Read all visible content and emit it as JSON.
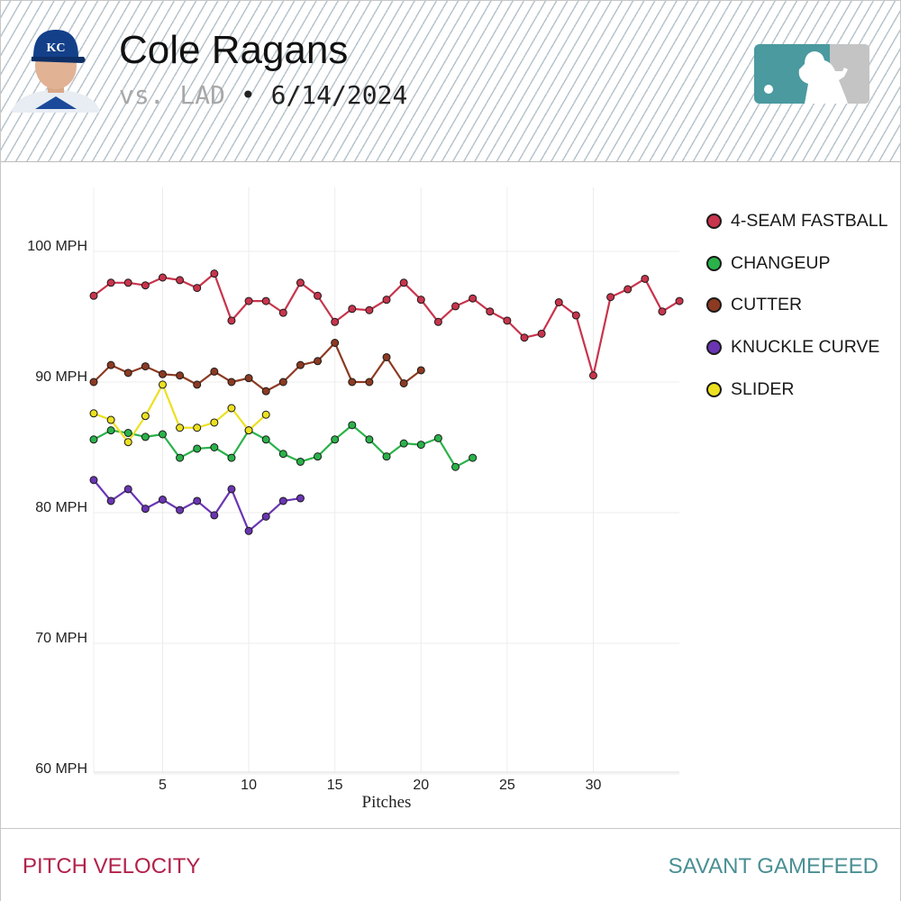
{
  "header": {
    "player_name": "Cole Ragans",
    "opponent": "vs. LAD",
    "separator": "•",
    "date": "6/14/2024",
    "cap_monogram": "KC"
  },
  "colors": {
    "accent_title": "#b2214a",
    "accent_brand": "#4a8f93"
  },
  "icons": {
    "avatar": "player-headshot",
    "logo": "mlb-logo"
  },
  "footer": {
    "left_label": "PITCH VELOCITY",
    "right_label": "SAVANT GAMEFEED"
  },
  "chart_data": {
    "type": "line",
    "title": "",
    "xlabel": "Pitches",
    "ylabel": "",
    "xlim": [
      1,
      35
    ],
    "ylim": [
      60,
      105
    ],
    "x_ticks": [
      5,
      10,
      15,
      20,
      25,
      30
    ],
    "y_ticks": [
      60,
      70,
      80,
      90,
      100
    ],
    "y_tick_labels": [
      "60 MPH",
      "70 MPH",
      "80 MPH",
      "90 MPH",
      "100 MPH"
    ],
    "grid": true,
    "legend_position": "right",
    "series": [
      {
        "name": "4-SEAM FASTBALL",
        "color": "#c8344c",
        "values": [
          96.6,
          97.6,
          97.6,
          97.4,
          98.0,
          97.8,
          97.2,
          98.3,
          94.7,
          96.2,
          96.2,
          95.3,
          97.6,
          96.6,
          94.6,
          95.6,
          95.5,
          96.3,
          97.6,
          96.3,
          94.6,
          95.8,
          96.4,
          95.4,
          94.7,
          93.4,
          93.7,
          96.1,
          95.1,
          90.5,
          96.5,
          97.1,
          97.9,
          95.4,
          96.2
        ]
      },
      {
        "name": "CHANGEUP",
        "color": "#2ab24a",
        "values": [
          85.6,
          86.3,
          86.1,
          85.8,
          86.0,
          84.2,
          84.9,
          85.0,
          84.2,
          86.3,
          85.6,
          84.5,
          83.9,
          84.3,
          85.6,
          86.7,
          85.6,
          84.3,
          85.3,
          85.2,
          85.7,
          83.5,
          84.2
        ]
      },
      {
        "name": "CUTTER",
        "color": "#8c3a22",
        "values": [
          90.0,
          91.3,
          90.7,
          91.2,
          90.6,
          90.5,
          89.8,
          90.8,
          90.0,
          90.3,
          89.3,
          90.0,
          91.3,
          91.6,
          93.0,
          90.0,
          90.0,
          91.9,
          89.9,
          90.9
        ]
      },
      {
        "name": "KNUCKLE CURVE",
        "color": "#6a35b3",
        "values": [
          82.5,
          80.9,
          81.8,
          80.3,
          81.0,
          80.2,
          80.9,
          79.8,
          81.8,
          78.6,
          79.7,
          80.9,
          81.1
        ]
      },
      {
        "name": "SLIDER",
        "color": "#ece01f",
        "values": [
          87.6,
          87.1,
          85.4,
          87.4,
          89.8,
          86.5,
          86.5,
          86.9,
          88.0,
          86.3,
          87.5
        ]
      }
    ]
  }
}
